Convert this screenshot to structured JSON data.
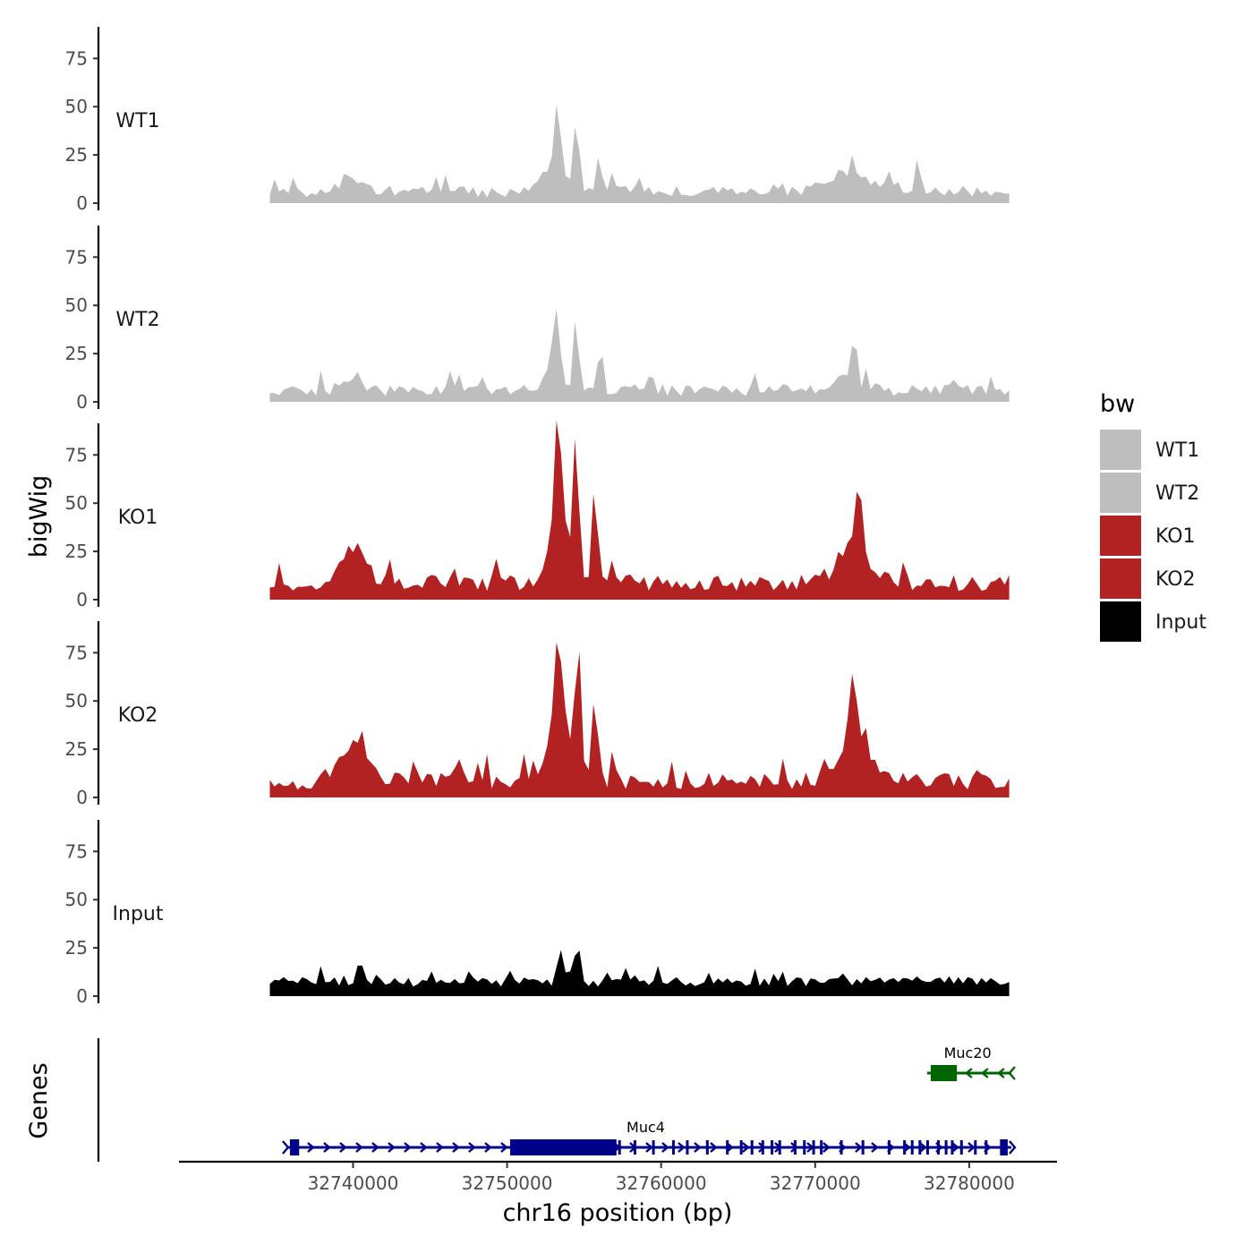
{
  "chart_data": {
    "type": "area",
    "title": "",
    "xlabel": "chr16 position (bp)",
    "ylabel": "bigWig",
    "genes_label": "Genes",
    "xlim": [
      32728700,
      32785700
    ],
    "ylim": [
      0,
      92
    ],
    "x_ticks": [
      {
        "value": 32740000,
        "label": "32740000"
      },
      {
        "value": 32750000,
        "label": "32750000"
      },
      {
        "value": 32760000,
        "label": "32760000"
      },
      {
        "value": 32770000,
        "label": "32770000"
      },
      {
        "value": 32780000,
        "label": "32780000"
      }
    ],
    "y_ticks": [
      {
        "value": 0,
        "label": "0"
      },
      {
        "value": 25,
        "label": "25"
      },
      {
        "value": 50,
        "label": "50"
      },
      {
        "value": 75,
        "label": "75"
      }
    ],
    "bin_size_bp": 300,
    "x_start": 32734600,
    "series": [
      {
        "name": "WT1",
        "color": "#BEBEBE",
        "seed": 11,
        "values": []
      },
      {
        "name": "WT2",
        "color": "#BEBEBE",
        "seed": 23,
        "values": []
      },
      {
        "name": "KO1",
        "color": "#B22222",
        "seed": 37,
        "values": []
      },
      {
        "name": "KO2",
        "color": "#B22222",
        "seed": 53,
        "values": []
      },
      {
        "name": "Input",
        "color": "#000000",
        "seed": 71,
        "values": []
      }
    ],
    "signal_shapes": {
      "WT1": {
        "base": 3,
        "noise": 6,
        "bumps": [
          [
            32740000,
            1000,
            7
          ],
          [
            32753000,
            800,
            14
          ],
          [
            32772000,
            2000,
            8
          ]
        ],
        "peaks": [
          [
            32753300,
            300,
            40
          ],
          [
            32754500,
            250,
            43
          ],
          [
            32756000,
            250,
            22
          ],
          [
            32772400,
            200,
            18
          ],
          [
            32776700,
            200,
            20
          ]
        ]
      },
      "WT2": {
        "base": 3,
        "noise": 6,
        "bumps": [
          [
            32740000,
            800,
            8
          ],
          [
            32753000,
            800,
            12
          ],
          [
            32772300,
            900,
            8
          ]
        ],
        "peaks": [
          [
            32753200,
            300,
            37
          ],
          [
            32754500,
            250,
            39
          ],
          [
            32756000,
            250,
            20
          ],
          [
            32772500,
            200,
            24
          ]
        ]
      },
      "KO1": {
        "base": 4,
        "noise": 9,
        "bumps": [
          [
            32740000,
            1200,
            18
          ],
          [
            32753500,
            1100,
            32
          ],
          [
            32772500,
            1400,
            22
          ]
        ],
        "peaks": [
          [
            32753300,
            300,
            65
          ],
          [
            32754500,
            200,
            85
          ],
          [
            32755700,
            250,
            50
          ],
          [
            32772800,
            250,
            43
          ]
        ]
      },
      "KO2": {
        "base": 4,
        "noise": 9,
        "bumps": [
          [
            32740000,
            1200,
            18
          ],
          [
            32753500,
            1100,
            32
          ],
          [
            32772500,
            1400,
            22
          ]
        ],
        "peaks": [
          [
            32753300,
            300,
            60
          ],
          [
            32754600,
            200,
            85
          ],
          [
            32755700,
            250,
            55
          ],
          [
            32772500,
            250,
            39
          ]
        ]
      },
      "Input": {
        "base": 5,
        "noise": 5,
        "bumps": [
          [
            32754000,
            600,
            5
          ]
        ],
        "peaks": [
          [
            32753400,
            200,
            18
          ],
          [
            32754600,
            200,
            25
          ]
        ]
      }
    },
    "genes": [
      {
        "name": "Muc4",
        "strand": "+",
        "color": "#00008B",
        "start": 32735900,
        "end": 32782500,
        "label_pos": 32759000,
        "row": 2,
        "exons": [
          [
            32735900,
            32736500
          ],
          [
            32750200,
            32757100
          ],
          [
            32782000,
            32782500
          ]
        ],
        "small_exons": [
          32757300,
          32758300,
          32759500,
          32760800,
          32761700,
          32763000,
          32764300,
          32765200,
          32765900,
          32766600,
          32767200,
          32767700,
          32768700,
          32769300,
          32769900,
          32770400,
          32771700,
          32773100,
          32774800,
          32775800,
          32776300,
          32776800,
          32777300,
          32778000,
          32778500,
          32778900,
          32779500,
          32780400,
          32781100
        ]
      },
      {
        "name": "Muc20",
        "strand": "-",
        "color": "#006400",
        "start": 32777500,
        "end": 32782500,
        "label_pos": 32779900,
        "row": 1,
        "exons": [
          [
            32777500,
            32779200
          ]
        ],
        "small_exons": []
      }
    ]
  }
}
